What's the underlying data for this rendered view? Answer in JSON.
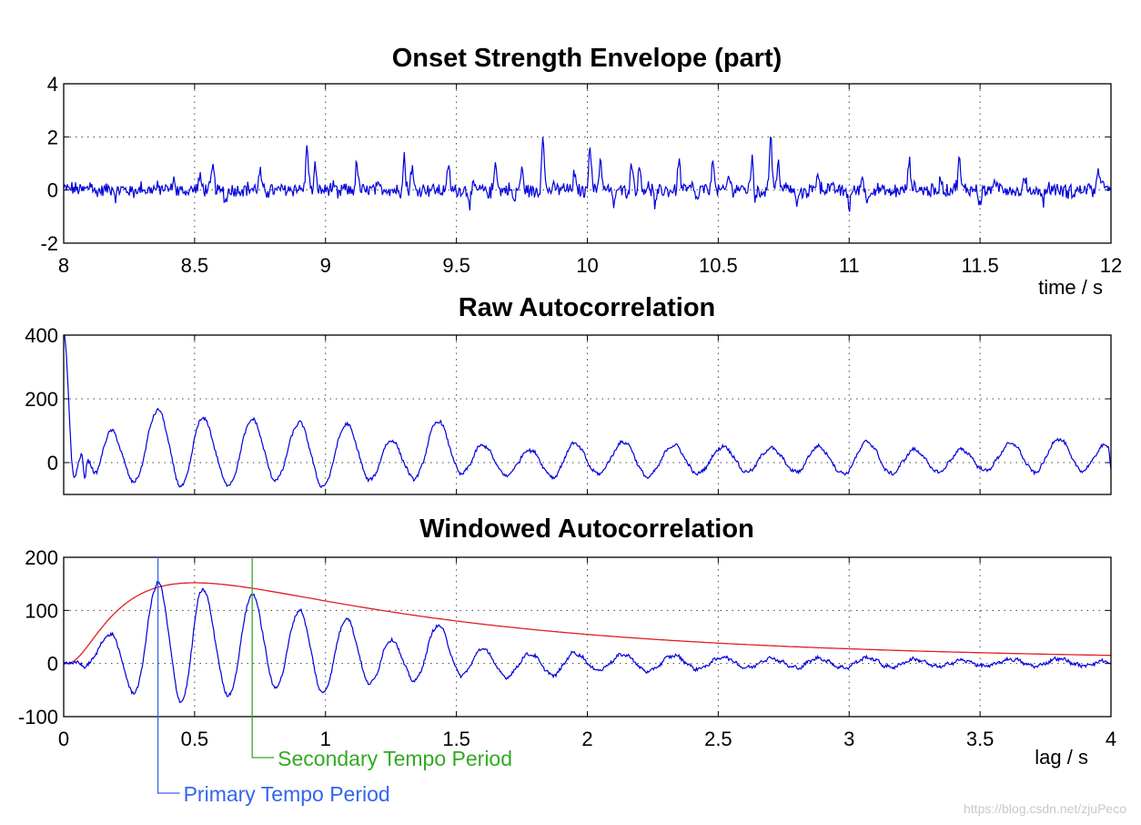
{
  "chart_data": [
    {
      "type": "line",
      "title": "Onset Strength Envelope (part)",
      "xlabel": "time / s",
      "ylabel": "",
      "xlim": [
        8,
        12
      ],
      "ylim": [
        -2,
        4
      ],
      "xticks": [
        8,
        8.5,
        9,
        9.5,
        10,
        10.5,
        11,
        11.5,
        12
      ],
      "xtick_labels": [
        "8",
        "8.5",
        "9",
        "9.5",
        "10",
        "10.5",
        "11",
        "11.5",
        "12"
      ],
      "yticks": [
        -2,
        0,
        2,
        4
      ],
      "ytick_labels": [
        "-2",
        "0",
        "2",
        "4"
      ],
      "grid": true,
      "series_color": "#0000dd",
      "peaks": [
        [
          8.1,
          0.25
        ],
        [
          8.3,
          0.2
        ],
        [
          8.42,
          0.5
        ],
        [
          8.52,
          0.4
        ],
        [
          8.57,
          0.85
        ],
        [
          8.75,
          0.7
        ],
        [
          8.93,
          1.75
        ],
        [
          8.96,
          0.9
        ],
        [
          9.12,
          1.05
        ],
        [
          9.3,
          1.3
        ],
        [
          9.33,
          0.85
        ],
        [
          9.47,
          1.0
        ],
        [
          9.65,
          1.2
        ],
        [
          9.75,
          0.7
        ],
        [
          9.83,
          2.2
        ],
        [
          9.95,
          0.6
        ],
        [
          10.01,
          1.8
        ],
        [
          10.05,
          1.15
        ],
        [
          10.17,
          1.1
        ],
        [
          10.2,
          0.8
        ],
        [
          10.35,
          1.1
        ],
        [
          10.48,
          1.3
        ],
        [
          10.54,
          0.5
        ],
        [
          10.63,
          1.4
        ],
        [
          10.7,
          2.1
        ],
        [
          10.73,
          1.0
        ],
        [
          10.88,
          0.7
        ],
        [
          11.05,
          0.45
        ],
        [
          11.23,
          1.0
        ],
        [
          11.35,
          0.55
        ],
        [
          11.42,
          1.05
        ],
        [
          11.55,
          0.3
        ],
        [
          11.67,
          0.6
        ],
        [
          11.95,
          0.6
        ],
        [
          11.97,
          0.5
        ]
      ],
      "dips": [
        [
          8.2,
          -0.3
        ],
        [
          8.62,
          -0.4
        ],
        [
          9.05,
          -0.3
        ],
        [
          9.55,
          -0.5
        ],
        [
          9.72,
          -0.55
        ],
        [
          10.1,
          -0.55
        ],
        [
          10.26,
          -0.65
        ],
        [
          10.42,
          -0.5
        ],
        [
          10.64,
          -0.5
        ],
        [
          10.8,
          -0.55
        ],
        [
          11.0,
          -0.55
        ],
        [
          11.07,
          -0.55
        ],
        [
          11.5,
          -0.5
        ],
        [
          11.74,
          -0.45
        ]
      ]
    },
    {
      "type": "line",
      "title": "Raw Autocorrelation",
      "xlabel": "",
      "ylabel": "",
      "xlim": [
        0,
        4
      ],
      "ylim": [
        -100,
        400
      ],
      "yticks": [
        0,
        200,
        400
      ],
      "ytick_labels": [
        "0",
        "200",
        "400"
      ],
      "grid": true,
      "series_color": "#0000dd",
      "peaks": [
        [
          0.0,
          400
        ],
        [
          0.07,
          25
        ],
        [
          0.09,
          5
        ],
        [
          0.18,
          100
        ],
        [
          0.36,
          165
        ],
        [
          0.53,
          140
        ],
        [
          0.72,
          135
        ],
        [
          0.9,
          125
        ],
        [
          1.08,
          120
        ],
        [
          1.25,
          70
        ],
        [
          1.43,
          130
        ],
        [
          1.6,
          55
        ],
        [
          1.78,
          40
        ],
        [
          1.95,
          60
        ],
        [
          2.14,
          65
        ],
        [
          2.33,
          55
        ],
        [
          2.52,
          50
        ],
        [
          2.7,
          45
        ],
        [
          2.88,
          50
        ],
        [
          3.07,
          65
        ],
        [
          3.25,
          40
        ],
        [
          3.43,
          40
        ],
        [
          3.62,
          60
        ],
        [
          3.8,
          75
        ],
        [
          3.98,
          55
        ],
        [
          3.99,
          55
        ]
      ],
      "valleys": [
        [
          0.04,
          -45
        ],
        [
          0.08,
          -50
        ],
        [
          0.12,
          -30
        ],
        [
          0.27,
          -60
        ],
        [
          0.45,
          -75
        ],
        [
          0.63,
          -70
        ],
        [
          0.81,
          -55
        ],
        [
          0.99,
          -75
        ],
        [
          1.17,
          -55
        ],
        [
          1.34,
          -50
        ],
        [
          1.52,
          -35
        ],
        [
          1.69,
          -40
        ],
        [
          1.87,
          -45
        ],
        [
          2.04,
          -35
        ],
        [
          2.23,
          -45
        ],
        [
          2.42,
          -35
        ],
        [
          2.61,
          -30
        ],
        [
          2.8,
          -30
        ],
        [
          2.98,
          -35
        ],
        [
          3.16,
          -35
        ],
        [
          3.34,
          -30
        ],
        [
          3.52,
          -25
        ],
        [
          3.71,
          -30
        ],
        [
          3.89,
          -25
        ],
        [
          4.0,
          -20
        ]
      ]
    },
    {
      "type": "line",
      "title": "Windowed Autocorrelation",
      "xlabel": "lag / s",
      "ylabel": "",
      "xlim": [
        0,
        4
      ],
      "ylim": [
        -100,
        200
      ],
      "xticks": [
        0,
        0.5,
        1,
        1.5,
        2,
        2.5,
        3,
        3.5,
        4
      ],
      "xtick_labels": [
        "0",
        "0.5",
        "1",
        "1.5",
        "2",
        "2.5",
        "3",
        "3.5",
        "4"
      ],
      "yticks": [
        -100,
        0,
        100,
        200
      ],
      "ytick_labels": [
        "-100",
        "0",
        "100",
        "200"
      ],
      "grid": true,
      "series": [
        {
          "color": "#0000dd",
          "peaks": [
            [
              0.0,
              0
            ],
            [
              0.05,
              2
            ],
            [
              0.18,
              55
            ],
            [
              0.36,
              152
            ],
            [
              0.53,
              140
            ],
            [
              0.72,
              130
            ],
            [
              0.9,
              100
            ],
            [
              1.08,
              85
            ],
            [
              1.25,
              45
            ],
            [
              1.43,
              72
            ],
            [
              1.6,
              28
            ],
            [
              1.78,
              18
            ],
            [
              1.95,
              20
            ],
            [
              2.14,
              17
            ],
            [
              2.33,
              15
            ],
            [
              2.52,
              12
            ],
            [
              2.7,
              10
            ],
            [
              2.88,
              10
            ],
            [
              3.07,
              11
            ],
            [
              3.25,
              8
            ],
            [
              3.43,
              6
            ],
            [
              3.62,
              8
            ],
            [
              3.8,
              9
            ],
            [
              3.98,
              5
            ]
          ],
          "valleys": [
            [
              0.02,
              0
            ],
            [
              0.08,
              -5
            ],
            [
              0.27,
              -55
            ],
            [
              0.45,
              -72
            ],
            [
              0.63,
              -60
            ],
            [
              0.81,
              -45
            ],
            [
              0.99,
              -55
            ],
            [
              1.17,
              -38
            ],
            [
              1.34,
              -32
            ],
            [
              1.52,
              -22
            ],
            [
              1.69,
              -25
            ],
            [
              1.87,
              -22
            ],
            [
              2.04,
              -12
            ],
            [
              2.23,
              -15
            ],
            [
              2.42,
              -10
            ],
            [
              2.61,
              -8
            ],
            [
              2.8,
              -8
            ],
            [
              2.98,
              -8
            ],
            [
              3.16,
              -7
            ],
            [
              3.34,
              -6
            ],
            [
              3.52,
              -5
            ],
            [
              3.71,
              -5
            ],
            [
              3.89,
              -4
            ],
            [
              4.0,
              -2
            ]
          ]
        },
        {
          "color": "#e02020",
          "window_peak_x": 0.5,
          "window_peak_y": 152,
          "window_width_octaves": 1.4
        }
      ],
      "annotations": [
        {
          "text": "Primary Tempo Period",
          "x": 0.36,
          "color": "#3366ee"
        },
        {
          "text": "Secondary Tempo Period",
          "x": 0.72,
          "color": "#33aa22"
        }
      ]
    }
  ],
  "watermark": "https://blog.csdn.net/zjuPeco"
}
